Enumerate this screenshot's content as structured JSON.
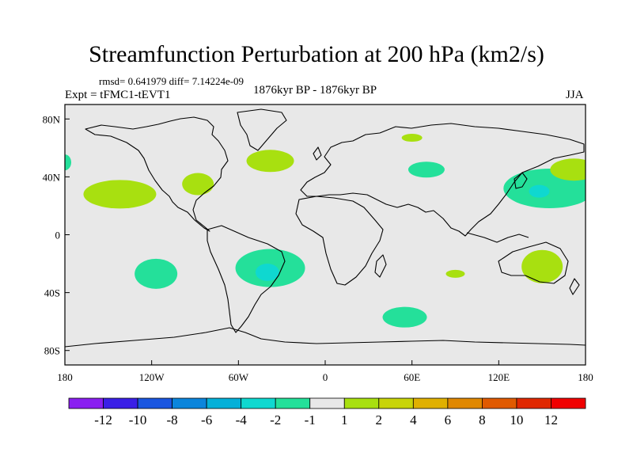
{
  "chart_data": {
    "type": "heatmap",
    "title": "Streamfunction Perturbation at 200 hPa (km2/s)",
    "stats_text": "rmsd= 0.641979 diff= 7.14224e-09",
    "left_label": "Expt = tFMC1-tEVT1",
    "center_label": "1876kyr BP - 1876kyr BP",
    "right_label": "JJA",
    "projection": "cylindrical equidistant",
    "xlim": [
      -180,
      180
    ],
    "ylim": [
      -90,
      90
    ],
    "x_ticks": [
      {
        "value": -180,
        "label": "180"
      },
      {
        "value": -120,
        "label": "120W"
      },
      {
        "value": -60,
        "label": "60W"
      },
      {
        "value": 0,
        "label": "0"
      },
      {
        "value": 60,
        "label": "60E"
      },
      {
        "value": 120,
        "label": "120E"
      },
      {
        "value": 180,
        "label": "180"
      }
    ],
    "y_ticks": [
      {
        "value": 80,
        "label": "80N"
      },
      {
        "value": 40,
        "label": "40N"
      },
      {
        "value": 0,
        "label": "0"
      },
      {
        "value": -40,
        "label": "40S"
      },
      {
        "value": -80,
        "label": "80S"
      }
    ],
    "colorbar": {
      "levels": [
        "-12",
        "-10",
        "-8",
        "-6",
        "-4",
        "-2",
        "-1",
        "1",
        "2",
        "4",
        "6",
        "8",
        "10",
        "12"
      ],
      "colors": [
        "#8a1ff0",
        "#3a1fe6",
        "#1a56e0",
        "#0b85dc",
        "#05b0d8",
        "#0fd8d0",
        "#24e09a",
        "#e8e8e8",
        "#a8e010",
        "#c8d40a",
        "#e0b000",
        "#e08800",
        "#e05a00",
        "#e02800",
        "#f00000"
      ]
    },
    "anomalies": [
      {
        "name": "N Pacific positive",
        "lon": -142,
        "lat": 28,
        "level": 1,
        "color": "#a8e010"
      },
      {
        "name": "US east coast positive",
        "lon": -88,
        "lat": 35,
        "level": 1,
        "color": "#a8e010"
      },
      {
        "name": "N Atlantic positive",
        "lon": -38,
        "lat": 51,
        "level": 1,
        "color": "#a8e010"
      },
      {
        "name": "Arctic Siberia positive",
        "lon": 60,
        "lat": 67,
        "level": 1,
        "color": "#a8e010"
      },
      {
        "name": "Central Asia negative",
        "lon": 70,
        "lat": 45,
        "level": -1,
        "color": "#24e09a"
      },
      {
        "name": "Japan NW Pacific negative",
        "lon": 155,
        "lat": 32,
        "level": -1,
        "color": "#24e09a"
      },
      {
        "name": "Japan core negative",
        "lon": 148,
        "lat": 30,
        "level": -2,
        "color": "#0fd8d0"
      },
      {
        "name": "NW Pacific positive",
        "lon": 172,
        "lat": 45,
        "level": 1,
        "color": "#a8e010"
      },
      {
        "name": "Dateline west negative",
        "lon": -180,
        "lat": 50,
        "level": -1,
        "color": "#24e09a"
      },
      {
        "name": "S Pacific negative",
        "lon": -117,
        "lat": -27,
        "level": -1,
        "color": "#24e09a"
      },
      {
        "name": "S Atlantic negative",
        "lon": -38,
        "lat": -23,
        "level": -1,
        "color": "#24e09a"
      },
      {
        "name": "S Atlantic core",
        "lon": -40,
        "lat": -26,
        "level": -2,
        "color": "#0fd8d0"
      },
      {
        "name": "Indian Ocean positive",
        "lon": 90,
        "lat": -27,
        "level": 1,
        "color": "#a8e010"
      },
      {
        "name": "Southern Ocean negative",
        "lon": 55,
        "lat": -57,
        "level": -1,
        "color": "#24e09a"
      },
      {
        "name": "Australia positive",
        "lon": 150,
        "lat": -22,
        "level": 1,
        "color": "#a8e010"
      }
    ]
  }
}
